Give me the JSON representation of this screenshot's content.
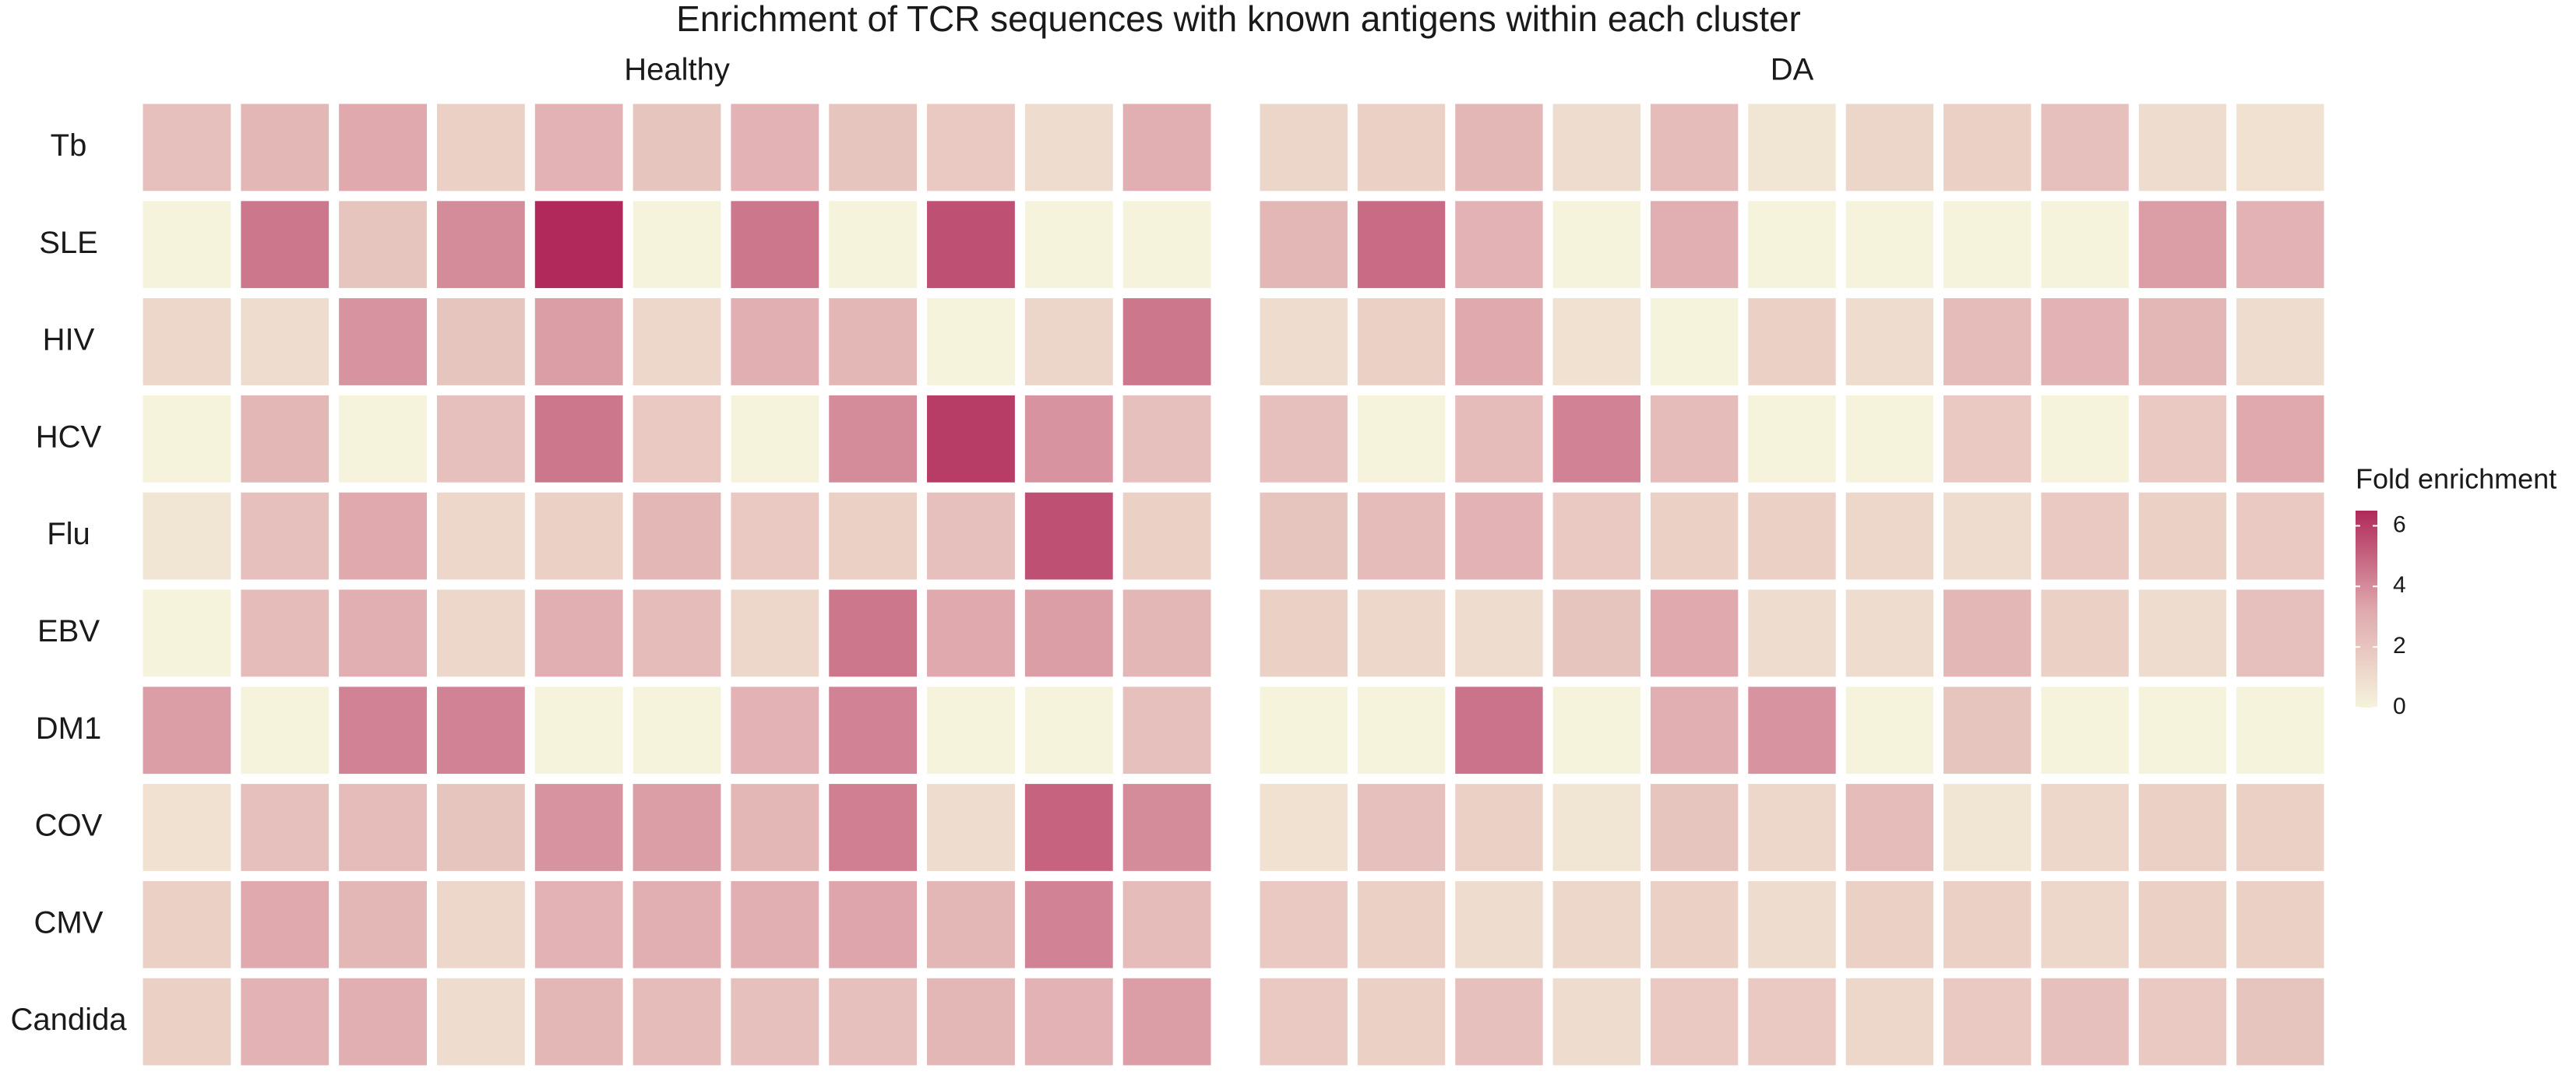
{
  "chart_data": {
    "type": "heatmap",
    "title": "Enrichment of TCR sequences with known antigens within each cluster",
    "rows": [
      "Tb",
      "SLE",
      "HIV",
      "HCV",
      "Flu",
      "EBV",
      "DM1",
      "COV",
      "CMV",
      "Candida"
    ],
    "categories": [
      null,
      null,
      null,
      null,
      null,
      null,
      null,
      null,
      null,
      null,
      null
    ],
    "panels": [
      {
        "title": "Healthy",
        "values": [
          [
            2.2,
            2.6,
            3.2,
            1.5,
            2.8,
            2.0,
            2.8,
            2.0,
            1.8,
            1.0,
            3.0
          ],
          [
            0,
            4.5,
            2.0,
            4.0,
            6.5,
            0,
            4.5,
            0,
            5.5,
            0,
            0
          ],
          [
            1.2,
            1.0,
            3.8,
            2.0,
            3.5,
            1.2,
            3.0,
            2.6,
            0,
            1.3,
            4.5
          ],
          [
            0,
            2.6,
            0,
            2.2,
            4.5,
            1.8,
            0,
            4.0,
            6.0,
            3.8,
            2.2
          ],
          [
            0.6,
            2.2,
            3.2,
            1.2,
            1.5,
            2.6,
            1.8,
            1.5,
            2.2,
            5.5,
            1.5
          ],
          [
            0,
            2.4,
            3.0,
            1.2,
            3.0,
            2.4,
            1.2,
            4.5,
            3.2,
            3.5,
            2.6
          ],
          [
            3.5,
            0,
            4.2,
            4.2,
            0,
            0,
            2.8,
            4.2,
            0,
            0,
            2.2
          ],
          [
            0.8,
            2.2,
            2.4,
            2.0,
            3.8,
            3.5,
            2.6,
            4.3,
            1.0,
            5.0,
            4.0
          ],
          [
            1.5,
            3.2,
            2.6,
            1.2,
            2.8,
            3.0,
            3.0,
            3.3,
            2.6,
            4.2,
            2.4
          ],
          [
            1.5,
            2.8,
            3.0,
            1.0,
            2.6,
            2.4,
            2.2,
            2.2,
            2.6,
            2.8,
            3.5
          ]
        ]
      },
      {
        "title": "DA",
        "values": [
          [
            1.3,
            1.5,
            2.6,
            1.0,
            2.4,
            0.6,
            1.3,
            1.5,
            2.2,
            1.0,
            0.8
          ],
          [
            2.6,
            4.8,
            2.8,
            0,
            3.0,
            0,
            0,
            0,
            0,
            3.5,
            2.8
          ],
          [
            1.0,
            1.5,
            3.2,
            0.8,
            0,
            1.5,
            1.0,
            2.4,
            2.8,
            2.6,
            1.0
          ],
          [
            2.2,
            0,
            2.4,
            4.2,
            2.4,
            0,
            0,
            1.8,
            0,
            1.8,
            3.2
          ],
          [
            2.0,
            2.4,
            2.8,
            1.8,
            1.5,
            1.5,
            1.2,
            1.0,
            1.8,
            1.5,
            1.8
          ],
          [
            1.5,
            1.2,
            1.0,
            2.0,
            3.2,
            1.0,
            1.0,
            2.6,
            1.5,
            1.0,
            2.2
          ],
          [
            0,
            0,
            4.6,
            0,
            3.0,
            3.8,
            0,
            2.0,
            0,
            0,
            0
          ],
          [
            0.8,
            2.2,
            1.5,
            0.6,
            2.0,
            1.2,
            2.4,
            0.6,
            1.2,
            1.5,
            1.5
          ],
          [
            1.8,
            1.5,
            1.0,
            1.2,
            1.5,
            1.0,
            1.5,
            1.5,
            1.2,
            1.5,
            1.5
          ],
          [
            1.8,
            1.5,
            2.2,
            1.0,
            1.8,
            1.8,
            1.2,
            1.8,
            2.2,
            1.8,
            2.0
          ]
        ]
      }
    ],
    "colorbar": {
      "title": "Fold enrichment",
      "lim": [
        0,
        6.5
      ],
      "ticks": [
        0,
        2,
        4,
        6
      ],
      "colors": [
        "#f5f3dc",
        "#dfa8ad",
        "#b0295a"
      ]
    }
  }
}
